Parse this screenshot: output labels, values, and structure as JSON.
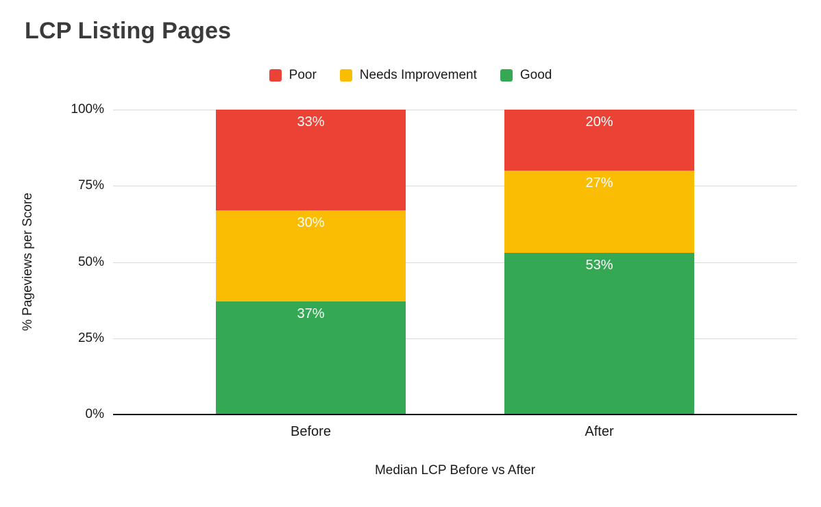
{
  "chart_data": {
    "type": "bar",
    "stacked": true,
    "title": "LCP Listing Pages",
    "categories": [
      "Before",
      "After"
    ],
    "series": [
      {
        "name": "Poor",
        "color": "#ea4335",
        "values": [
          33,
          20
        ]
      },
      {
        "name": "Needs Improvement",
        "color": "#fbbc04",
        "values": [
          30,
          27
        ]
      },
      {
        "name": "Good",
        "color": "#34a853",
        "values": [
          37,
          53
        ]
      }
    ],
    "data_label_suffix": "%",
    "xlabel": "Median LCP Before vs After",
    "ylabel": "% Pageviews per Score",
    "ylim": [
      0,
      100
    ],
    "yticks": [
      "0%",
      "25%",
      "50%",
      "75%",
      "100%"
    ],
    "legend_position": "top",
    "grid": true,
    "colors": {
      "background": "#ffffff",
      "gridline": "#d9d9d9",
      "axis_line": "#000000",
      "title_text": "#3b3b3b",
      "label_text": "#1a1a1a",
      "data_label_text": "#ffffff"
    }
  }
}
